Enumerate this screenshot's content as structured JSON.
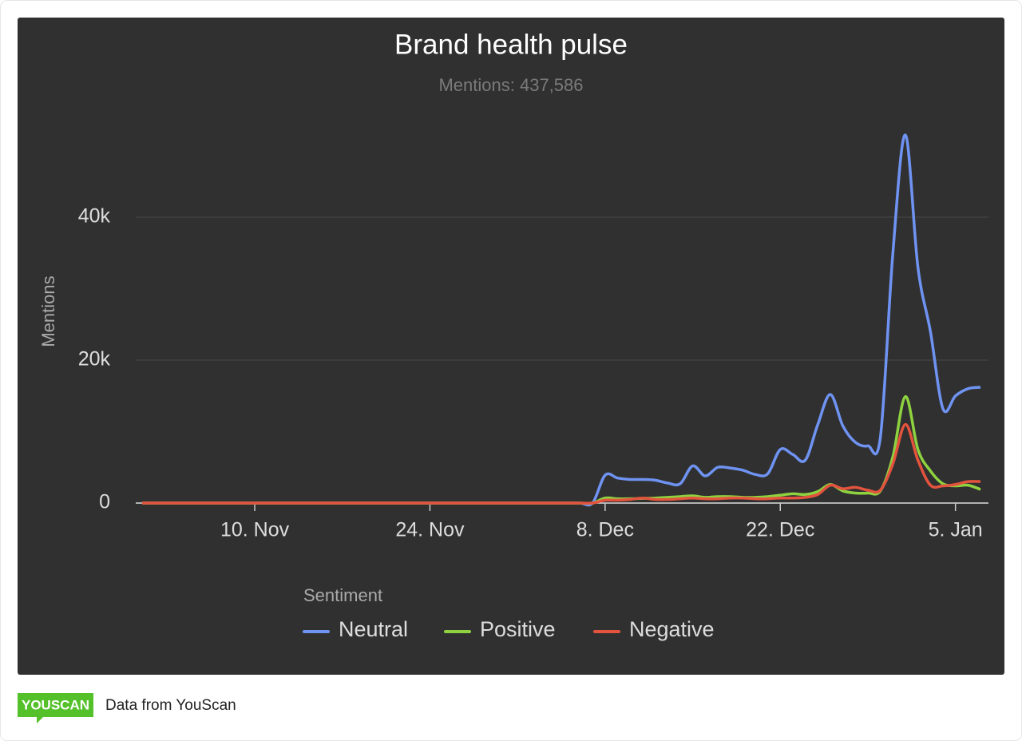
{
  "chart_data": {
    "type": "line",
    "title": "Brand health pulse",
    "subtitle": "Mentions: 437,586",
    "y_label": "Mentions",
    "legend_title": "Sentiment",
    "legend": "bottom",
    "grid": true,
    "categories": [
      "1. Nov",
      "2. Nov",
      "3. Nov",
      "4. Nov",
      "5. Nov",
      "6. Nov",
      "7. Nov",
      "8. Nov",
      "9. Nov",
      "10. Nov",
      "11. Nov",
      "12. Nov",
      "13. Nov",
      "14. Nov",
      "15. Nov",
      "16. Nov",
      "17. Nov",
      "18. Nov",
      "19. Nov",
      "20. Nov",
      "21. Nov",
      "22. Nov",
      "23. Nov",
      "24. Nov",
      "25. Nov",
      "26. Nov",
      "27. Nov",
      "28. Nov",
      "29. Nov",
      "30. Nov",
      "1. Dec",
      "2. Dec",
      "3. Dec",
      "4. Dec",
      "5. Dec",
      "6. Dec",
      "7. Dec",
      "8. Dec",
      "9. Dec",
      "10. Dec",
      "11. Dec",
      "12. Dec",
      "13. Dec",
      "14. Dec",
      "15. Dec",
      "16. Dec",
      "17. Dec",
      "18. Dec",
      "19. Dec",
      "20. Dec",
      "21. Dec",
      "22. Dec",
      "23. Dec",
      "24. Dec",
      "25. Dec",
      "26. Dec",
      "27. Dec",
      "28. Dec",
      "29. Dec",
      "30. Dec",
      "31. Dec",
      "1. Jan",
      "2. Jan",
      "3. Jan",
      "4. Jan",
      "5. Jan",
      "6. Jan",
      "7. Jan"
    ],
    "xticks": [
      "10. Nov",
      "24. Nov",
      "8. Dec",
      "22. Dec",
      "5. Jan"
    ],
    "ylim": [
      0,
      55000
    ],
    "yticks": [
      0,
      {
        "value": 20000,
        "label": "20k"
      },
      {
        "value": 40000,
        "label": "40k"
      }
    ],
    "series": [
      {
        "name": "Neutral",
        "color": "#6f93f2",
        "values": [
          0,
          0,
          0,
          0,
          0,
          0,
          0,
          0,
          0,
          0,
          0,
          0,
          0,
          0,
          0,
          0,
          0,
          0,
          0,
          0,
          0,
          0,
          0,
          0,
          0,
          0,
          0,
          0,
          0,
          0,
          0,
          0,
          0,
          0,
          0,
          0,
          0,
          3900,
          3500,
          3300,
          3300,
          3200,
          2800,
          2700,
          5200,
          3800,
          5000,
          4900,
          4600,
          4000,
          4100,
          7500,
          6800,
          6000,
          11000,
          15200,
          10800,
          8500,
          8000,
          9200,
          35000,
          51500,
          33000,
          24000,
          13200,
          15000,
          16000,
          16200
        ]
      },
      {
        "name": "Positive",
        "color": "#8ed23f",
        "values": [
          0,
          0,
          0,
          0,
          0,
          0,
          0,
          0,
          0,
          0,
          0,
          0,
          0,
          0,
          0,
          0,
          0,
          0,
          0,
          0,
          0,
          0,
          0,
          0,
          0,
          0,
          0,
          0,
          0,
          0,
          0,
          0,
          0,
          0,
          0,
          0,
          0,
          700,
          600,
          600,
          650,
          700,
          800,
          900,
          1000,
          800,
          900,
          900,
          800,
          800,
          900,
          1100,
          1300,
          1200,
          1600,
          2600,
          1700,
          1400,
          1400,
          1700,
          6500,
          14900,
          7500,
          4500,
          2700,
          2400,
          2500,
          1900
        ]
      },
      {
        "name": "Negative",
        "color": "#e3533d",
        "values": [
          0,
          0,
          0,
          0,
          0,
          0,
          0,
          0,
          0,
          0,
          0,
          0,
          0,
          0,
          0,
          0,
          0,
          0,
          0,
          0,
          0,
          0,
          0,
          0,
          0,
          0,
          0,
          0,
          0,
          0,
          0,
          0,
          0,
          0,
          0,
          0,
          0,
          400,
          400,
          500,
          700,
          500,
          500,
          600,
          700,
          600,
          600,
          700,
          700,
          600,
          600,
          700,
          700,
          800,
          1200,
          2500,
          2000,
          2200,
          1800,
          1800,
          5500,
          11000,
          6000,
          2500,
          2400,
          2600,
          3000,
          3000
        ]
      }
    ]
  },
  "footer": {
    "logo": "YOUSCAN",
    "text": "Data from YouScan"
  }
}
